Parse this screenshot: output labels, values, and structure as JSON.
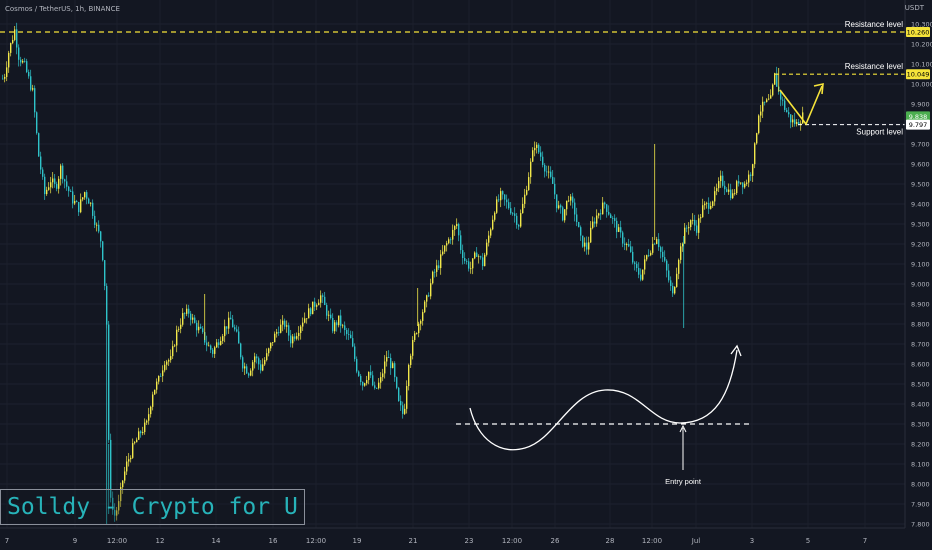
{
  "header": {
    "title": "Cosmos / TetherUS, 1h, BINANCE",
    "unit": "USDT"
  },
  "watermark": "Solldy - Crypto for U",
  "colors": {
    "background": "#131722",
    "up": "#f2e84b",
    "down": "#2fc3c9",
    "level_line": "#f5e33a",
    "support_line": "#ffffff",
    "current_price_bg": "#4caf50"
  },
  "chart_data": {
    "type": "candlestick",
    "title": "Cosmos / TetherUS, 1h, BINANCE",
    "ylabel": "USDT",
    "ylim": [
      7.76,
      10.33
    ],
    "y_ticks": [
      "10.300",
      "10.200",
      "10.100",
      "10.000",
      "9.900",
      "9.800",
      "9.700",
      "9.600",
      "9.500",
      "9.400",
      "9.300",
      "9.200",
      "9.100",
      "9.000",
      "8.900",
      "8.800",
      "8.700",
      "8.600",
      "8.500",
      "8.400",
      "8.300",
      "8.200",
      "8.100",
      "8.000",
      "7.900",
      "7.800"
    ],
    "x_ticks": [
      "7",
      "9",
      "12:00",
      "12",
      "14",
      "16",
      "12:00",
      "19",
      "21",
      "23",
      "12:00",
      "26",
      "28",
      "12:00",
      "Jul",
      "3",
      "5",
      "7"
    ],
    "price_path": [
      [
        0,
        10.04
      ],
      [
        3,
        10.02
      ],
      [
        8,
        10.16
      ],
      [
        14,
        10.27
      ],
      [
        18,
        10.14
      ],
      [
        24,
        10.09
      ],
      [
        32,
        9.96
      ],
      [
        38,
        9.64
      ],
      [
        44,
        9.45
      ],
      [
        50,
        9.52
      ],
      [
        55,
        9.48
      ],
      [
        60,
        9.58
      ],
      [
        65,
        9.5
      ],
      [
        72,
        9.42
      ],
      [
        78,
        9.38
      ],
      [
        84,
        9.46
      ],
      [
        90,
        9.4
      ],
      [
        95,
        9.3
      ],
      [
        100,
        9.22
      ],
      [
        103,
        9.1
      ],
      [
        106,
        8.8
      ],
      [
        108,
        8.2
      ],
      [
        110,
        7.95
      ],
      [
        113,
        7.83
      ],
      [
        118,
        7.9
      ],
      [
        122,
        8.02
      ],
      [
        126,
        8.1
      ],
      [
        132,
        8.18
      ],
      [
        140,
        8.26
      ],
      [
        146,
        8.3
      ],
      [
        152,
        8.46
      ],
      [
        158,
        8.52
      ],
      [
        164,
        8.62
      ],
      [
        170,
        8.62
      ],
      [
        176,
        8.76
      ],
      [
        182,
        8.84
      ],
      [
        188,
        8.86
      ],
      [
        194,
        8.8
      ],
      [
        200,
        8.76
      ],
      [
        206,
        8.7
      ],
      [
        212,
        8.66
      ],
      [
        218,
        8.72
      ],
      [
        224,
        8.78
      ],
      [
        230,
        8.82
      ],
      [
        236,
        8.74
      ],
      [
        242,
        8.6
      ],
      [
        248,
        8.56
      ],
      [
        254,
        8.64
      ],
      [
        260,
        8.58
      ],
      [
        266,
        8.64
      ],
      [
        272,
        8.72
      ],
      [
        278,
        8.78
      ],
      [
        284,
        8.8
      ],
      [
        290,
        8.72
      ],
      [
        296,
        8.76
      ],
      [
        302,
        8.82
      ],
      [
        308,
        8.86
      ],
      [
        314,
        8.9
      ],
      [
        320,
        8.94
      ],
      [
        326,
        8.86
      ],
      [
        332,
        8.78
      ],
      [
        338,
        8.82
      ],
      [
        344,
        8.76
      ],
      [
        350,
        8.72
      ],
      [
        356,
        8.58
      ],
      [
        362,
        8.5
      ],
      [
        368,
        8.56
      ],
      [
        374,
        8.46
      ],
      [
        380,
        8.52
      ],
      [
        386,
        8.64
      ],
      [
        392,
        8.58
      ],
      [
        398,
        8.4
      ],
      [
        403,
        8.34
      ],
      [
        408,
        8.62
      ],
      [
        414,
        8.74
      ],
      [
        420,
        8.84
      ],
      [
        426,
        8.92
      ],
      [
        432,
        9.04
      ],
      [
        438,
        9.1
      ],
      [
        444,
        9.18
      ],
      [
        450,
        9.24
      ],
      [
        456,
        9.3
      ],
      [
        460,
        9.18
      ],
      [
        464,
        9.12
      ],
      [
        470,
        9.08
      ],
      [
        476,
        9.16
      ],
      [
        482,
        9.1
      ],
      [
        488,
        9.24
      ],
      [
        494,
        9.38
      ],
      [
        500,
        9.44
      ],
      [
        506,
        9.4
      ],
      [
        512,
        9.36
      ],
      [
        518,
        9.3
      ],
      [
        524,
        9.44
      ],
      [
        530,
        9.6
      ],
      [
        534,
        9.7
      ],
      [
        540,
        9.64
      ],
      [
        546,
        9.56
      ],
      [
        552,
        9.5
      ],
      [
        556,
        9.4
      ],
      [
        562,
        9.34
      ],
      [
        568,
        9.44
      ],
      [
        574,
        9.36
      ],
      [
        580,
        9.22
      ],
      [
        586,
        9.18
      ],
      [
        592,
        9.3
      ],
      [
        598,
        9.36
      ],
      [
        604,
        9.4
      ],
      [
        610,
        9.34
      ],
      [
        616,
        9.28
      ],
      [
        622,
        9.22
      ],
      [
        628,
        9.18
      ],
      [
        634,
        9.08
      ],
      [
        640,
        9.04
      ],
      [
        646,
        9.14
      ],
      [
        652,
        9.2
      ],
      [
        656,
        9.24
      ],
      [
        660,
        9.16
      ],
      [
        664,
        9.1
      ],
      [
        668,
        9.02
      ],
      [
        672,
        8.94
      ],
      [
        678,
        9.14
      ],
      [
        684,
        9.26
      ],
      [
        690,
        9.32
      ],
      [
        696,
        9.28
      ],
      [
        702,
        9.38
      ],
      [
        708,
        9.4
      ],
      [
        714,
        9.44
      ],
      [
        720,
        9.52
      ],
      [
        726,
        9.48
      ],
      [
        732,
        9.44
      ],
      [
        738,
        9.52
      ],
      [
        744,
        9.5
      ],
      [
        750,
        9.56
      ],
      [
        754,
        9.68
      ],
      [
        758,
        9.86
      ],
      [
        764,
        9.9
      ],
      [
        770,
        9.92
      ],
      [
        774,
        10.04
      ],
      [
        778,
        9.96
      ],
      [
        784,
        9.88
      ],
      [
        790,
        9.82
      ],
      [
        796,
        9.8
      ],
      [
        802,
        9.84
      ]
    ],
    "wicks": [
      [
        106,
        7.8
      ],
      [
        108,
        7.85
      ],
      [
        204,
        8.95
      ],
      [
        417,
        8.98
      ],
      [
        654,
        9.7
      ],
      [
        683,
        8.78
      ],
      [
        778,
        10.08
      ]
    ],
    "levels": [
      {
        "label": "Resistance level",
        "value": 10.26,
        "price_tag": "10.260"
      },
      {
        "label": "Resistance level",
        "value": 10.049,
        "price_tag": "10.049"
      },
      {
        "label": "Support level",
        "value": 9.797,
        "price_tag": "9.797"
      }
    ],
    "current_price": "9.838",
    "annotations": [
      "Entry point"
    ]
  }
}
